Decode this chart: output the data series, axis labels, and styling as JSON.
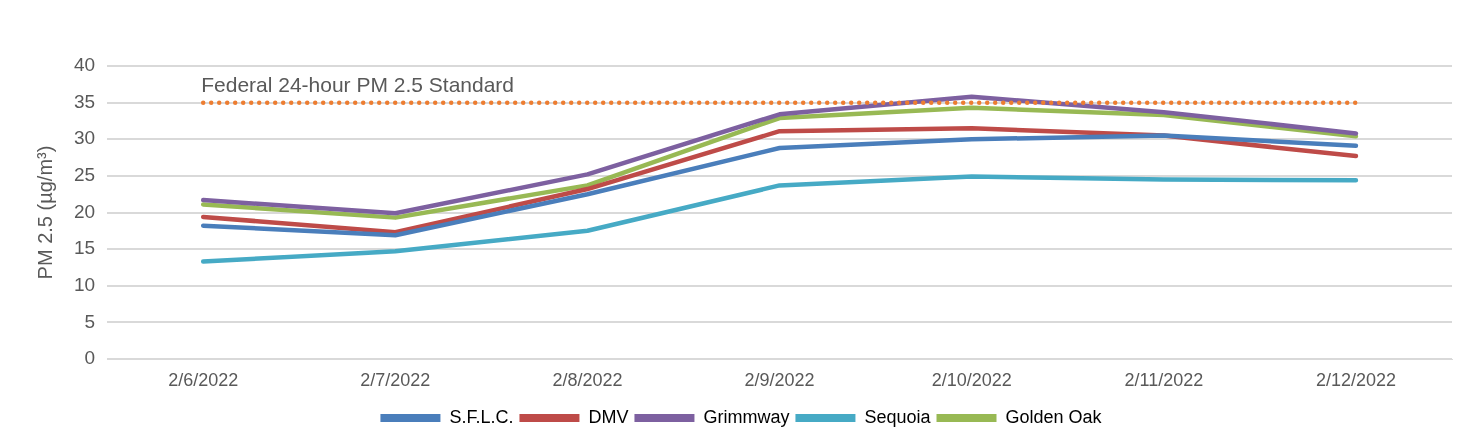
{
  "chart_data": {
    "type": "line",
    "ylabel": "PM 2.5 (µg/m³)",
    "categories": [
      "2/6/2022",
      "2/7/2022",
      "2/8/2022",
      "2/9/2022",
      "2/10/2022",
      "2/11/2022",
      "2/12/2022"
    ],
    "series": [
      {
        "name": "S.F.L.C.",
        "color": "#4a7ebb",
        "values": [
          18.2,
          16.9,
          22.5,
          28.8,
          30.0,
          30.5,
          29.1
        ]
      },
      {
        "name": "DMV",
        "color": "#be4b48",
        "values": [
          19.4,
          17.3,
          23.2,
          31.1,
          31.5,
          30.5,
          27.7
        ]
      },
      {
        "name": "Grimmway",
        "color": "#7d60a0",
        "values": [
          21.7,
          19.9,
          25.2,
          33.4,
          35.8,
          33.7,
          30.8
        ]
      },
      {
        "name": "Sequoia",
        "color": "#46aac5",
        "values": [
          13.3,
          14.7,
          17.5,
          23.7,
          24.9,
          24.5,
          24.4
        ]
      },
      {
        "name": "Golden Oak",
        "color": "#98b954",
        "values": [
          21.1,
          19.3,
          23.7,
          32.9,
          34.3,
          33.3,
          30.4
        ]
      }
    ],
    "ylim": [
      0,
      40
    ],
    "yticks": [
      0,
      5,
      10,
      15,
      20,
      25,
      30,
      35,
      40
    ],
    "ref_lines": [
      {
        "axis": "y",
        "value": 35,
        "label": "Federal 24-hour PM 2.5 Standard",
        "color": "#ed7d31",
        "line_style": "dotted"
      }
    ],
    "grid": "y",
    "legend": "bottom",
    "marker": "none",
    "line_style": "solid"
  }
}
